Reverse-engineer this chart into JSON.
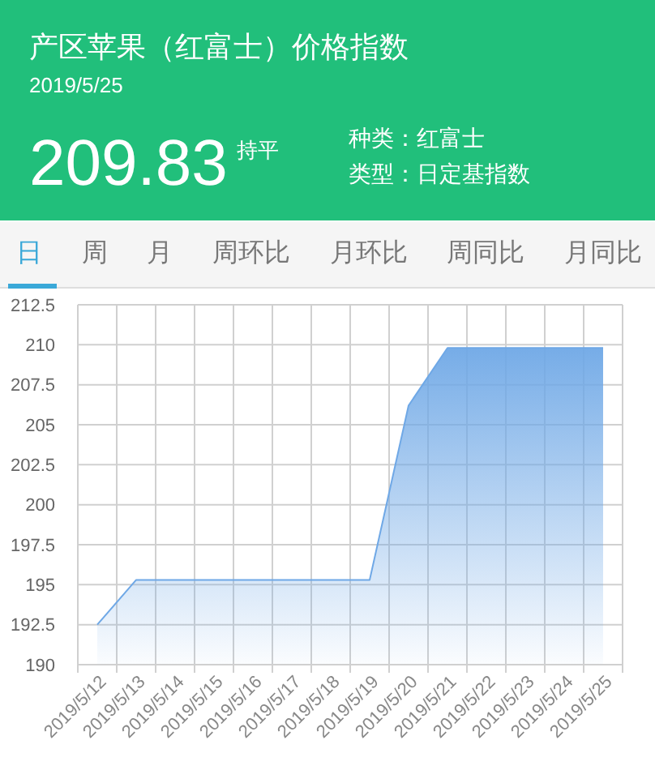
{
  "chart_data": {
    "type": "area",
    "title": "产区苹果（红富士）价格指数",
    "subtitle": "2019/5/25",
    "annotations": [
      "209.83",
      "持平",
      "种类：红富士",
      "类型：日定基指数",
      "日",
      "周",
      "月",
      "周环比",
      "月环比",
      "周同比",
      "月同比"
    ],
    "categories": [
      "2019/5/12",
      "2019/5/13",
      "2019/5/14",
      "2019/5/15",
      "2019/5/16",
      "2019/5/17",
      "2019/5/18",
      "2019/5/19",
      "2019/5/20",
      "2019/5/21",
      "2019/5/22",
      "2019/5/23",
      "2019/5/24",
      "2019/5/25"
    ],
    "values": [
      192.5,
      195.3,
      195.3,
      195.3,
      195.3,
      195.3,
      195.3,
      195.3,
      206.2,
      209.8,
      209.8,
      209.8,
      209.8,
      209.8
    ],
    "color": "#6fa8e6",
    "ylim": [
      190,
      212.5
    ],
    "yticks": [
      190,
      192.5,
      195,
      197.5,
      200,
      202.5,
      205,
      207.5,
      210,
      212.5
    ],
    "grid": true
  }
}
